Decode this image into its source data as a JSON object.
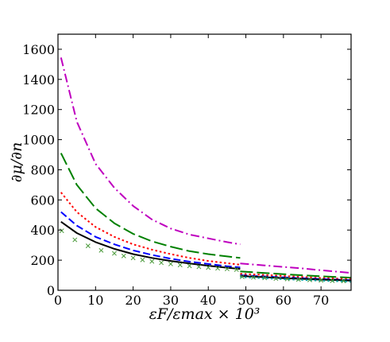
{
  "chart_data": {
    "type": "line",
    "title": "",
    "xlabel": "εF/εmax × 10³",
    "ylabel": "∂μ/∂n",
    "xlim": [
      0,
      78
    ],
    "ylim": [
      0,
      1700
    ],
    "xticks": [
      0,
      10,
      20,
      30,
      40,
      50,
      60,
      70
    ],
    "yticks": [
      0,
      200,
      400,
      600,
      800,
      1000,
      1200,
      1400,
      1600
    ],
    "xtick_labels": [
      "0",
      "10",
      "20",
      "30",
      "40",
      "50",
      "60",
      "70"
    ],
    "ytick_labels": [
      "0",
      "200",
      "400",
      "600",
      "800",
      "1000",
      "1200",
      "1400",
      "1600"
    ],
    "grid": false,
    "legend": "none",
    "series": [
      {
        "style": "dash-dot",
        "color": "#bf00bf",
        "segments": [
          {
            "x": [
              0.8,
              5,
              10,
              15,
              20,
              25,
              30,
              35,
              40,
              45,
              48.5
            ],
            "y": [
              1545,
              1120,
              840,
              680,
              560,
              470,
              410,
              370,
              345,
              320,
              305
            ]
          },
          {
            "x": [
              48.5,
              55,
              60,
              65,
              70,
              75,
              78
            ],
            "y": [
              178,
              165,
              155,
              145,
              133,
              122,
              115
            ]
          }
        ]
      },
      {
        "style": "long-dash",
        "color": "#008000",
        "segments": [
          {
            "x": [
              0.8,
              5,
              10,
              15,
              20,
              25,
              30,
              35,
              40,
              45,
              48.5
            ],
            "y": [
              910,
              700,
              545,
              445,
              375,
              325,
              290,
              260,
              240,
              225,
              215
            ]
          },
          {
            "x": [
              48.5,
              55,
              60,
              65,
              70,
              75,
              78
            ],
            "y": [
              125,
              115,
              107,
              100,
              93,
              87,
              84
            ]
          }
        ]
      },
      {
        "style": "dotted",
        "color": "#ff0000",
        "segments": [
          {
            "x": [
              0.8,
              5,
              10,
              15,
              20,
              25,
              30,
              35,
              40,
              45,
              48.5
            ],
            "y": [
              650,
              520,
              420,
              355,
              305,
              270,
              240,
              215,
              195,
              180,
              170
            ]
          },
          {
            "x": [
              48.5,
              55,
              60,
              65,
              70,
              75,
              78
            ],
            "y": [
              110,
              102,
              95,
              88,
              82,
              77,
              74
            ]
          }
        ]
      },
      {
        "style": "dashed",
        "color": "#0000ff",
        "segments": [
          {
            "x": [
              0.8,
              5,
              10,
              15,
              20,
              25,
              30,
              35,
              40,
              45,
              48.5
            ],
            "y": [
              520,
              430,
              355,
              305,
              265,
              235,
              210,
              190,
              175,
              160,
              152
            ]
          },
          {
            "x": [
              48.5,
              55,
              60,
              65,
              70,
              75,
              78
            ],
            "y": [
              100,
              92,
              86,
              80,
              75,
              70,
              67
            ]
          }
        ]
      },
      {
        "style": "solid",
        "color": "#000000",
        "segments": [
          {
            "x": [
              0.8,
              5,
              10,
              15,
              20,
              25,
              30,
              35,
              40,
              45,
              48.5
            ],
            "y": [
              455,
              380,
              320,
              275,
              240,
              215,
              195,
              178,
              163,
              150,
              142
            ]
          },
          {
            "x": [
              48.5,
              55,
              60,
              65,
              70,
              75,
              78
            ],
            "y": [
              95,
              87,
              81,
              76,
              71,
              67,
              64
            ]
          }
        ]
      },
      {
        "style": "dotted",
        "color": "#00a0a0",
        "segments": [
          {
            "x": [
              48.5,
              55,
              60,
              65,
              70,
              75,
              78
            ],
            "y": [
              88,
              80,
              74,
              69,
              64,
              60,
              57
            ]
          }
        ]
      },
      {
        "style": "markers-x",
        "color": "#4a9a3a",
        "points": {
          "x": [
            1,
            4.5,
            8,
            11.5,
            15,
            17.5,
            20,
            22.5,
            25,
            27.5,
            30,
            32.5,
            35,
            37.5,
            40,
            42.5,
            45,
            47.5,
            49,
            52,
            55,
            58,
            61,
            64,
            67,
            70,
            73,
            76
          ],
          "y": [
            395,
            335,
            295,
            265,
            245,
            228,
            215,
            202,
            192,
            183,
            175,
            168,
            162,
            156,
            151,
            146,
            142,
            138,
            90,
            86,
            82,
            78,
            75,
            72,
            69,
            66,
            64,
            62
          ]
        }
      }
    ]
  }
}
